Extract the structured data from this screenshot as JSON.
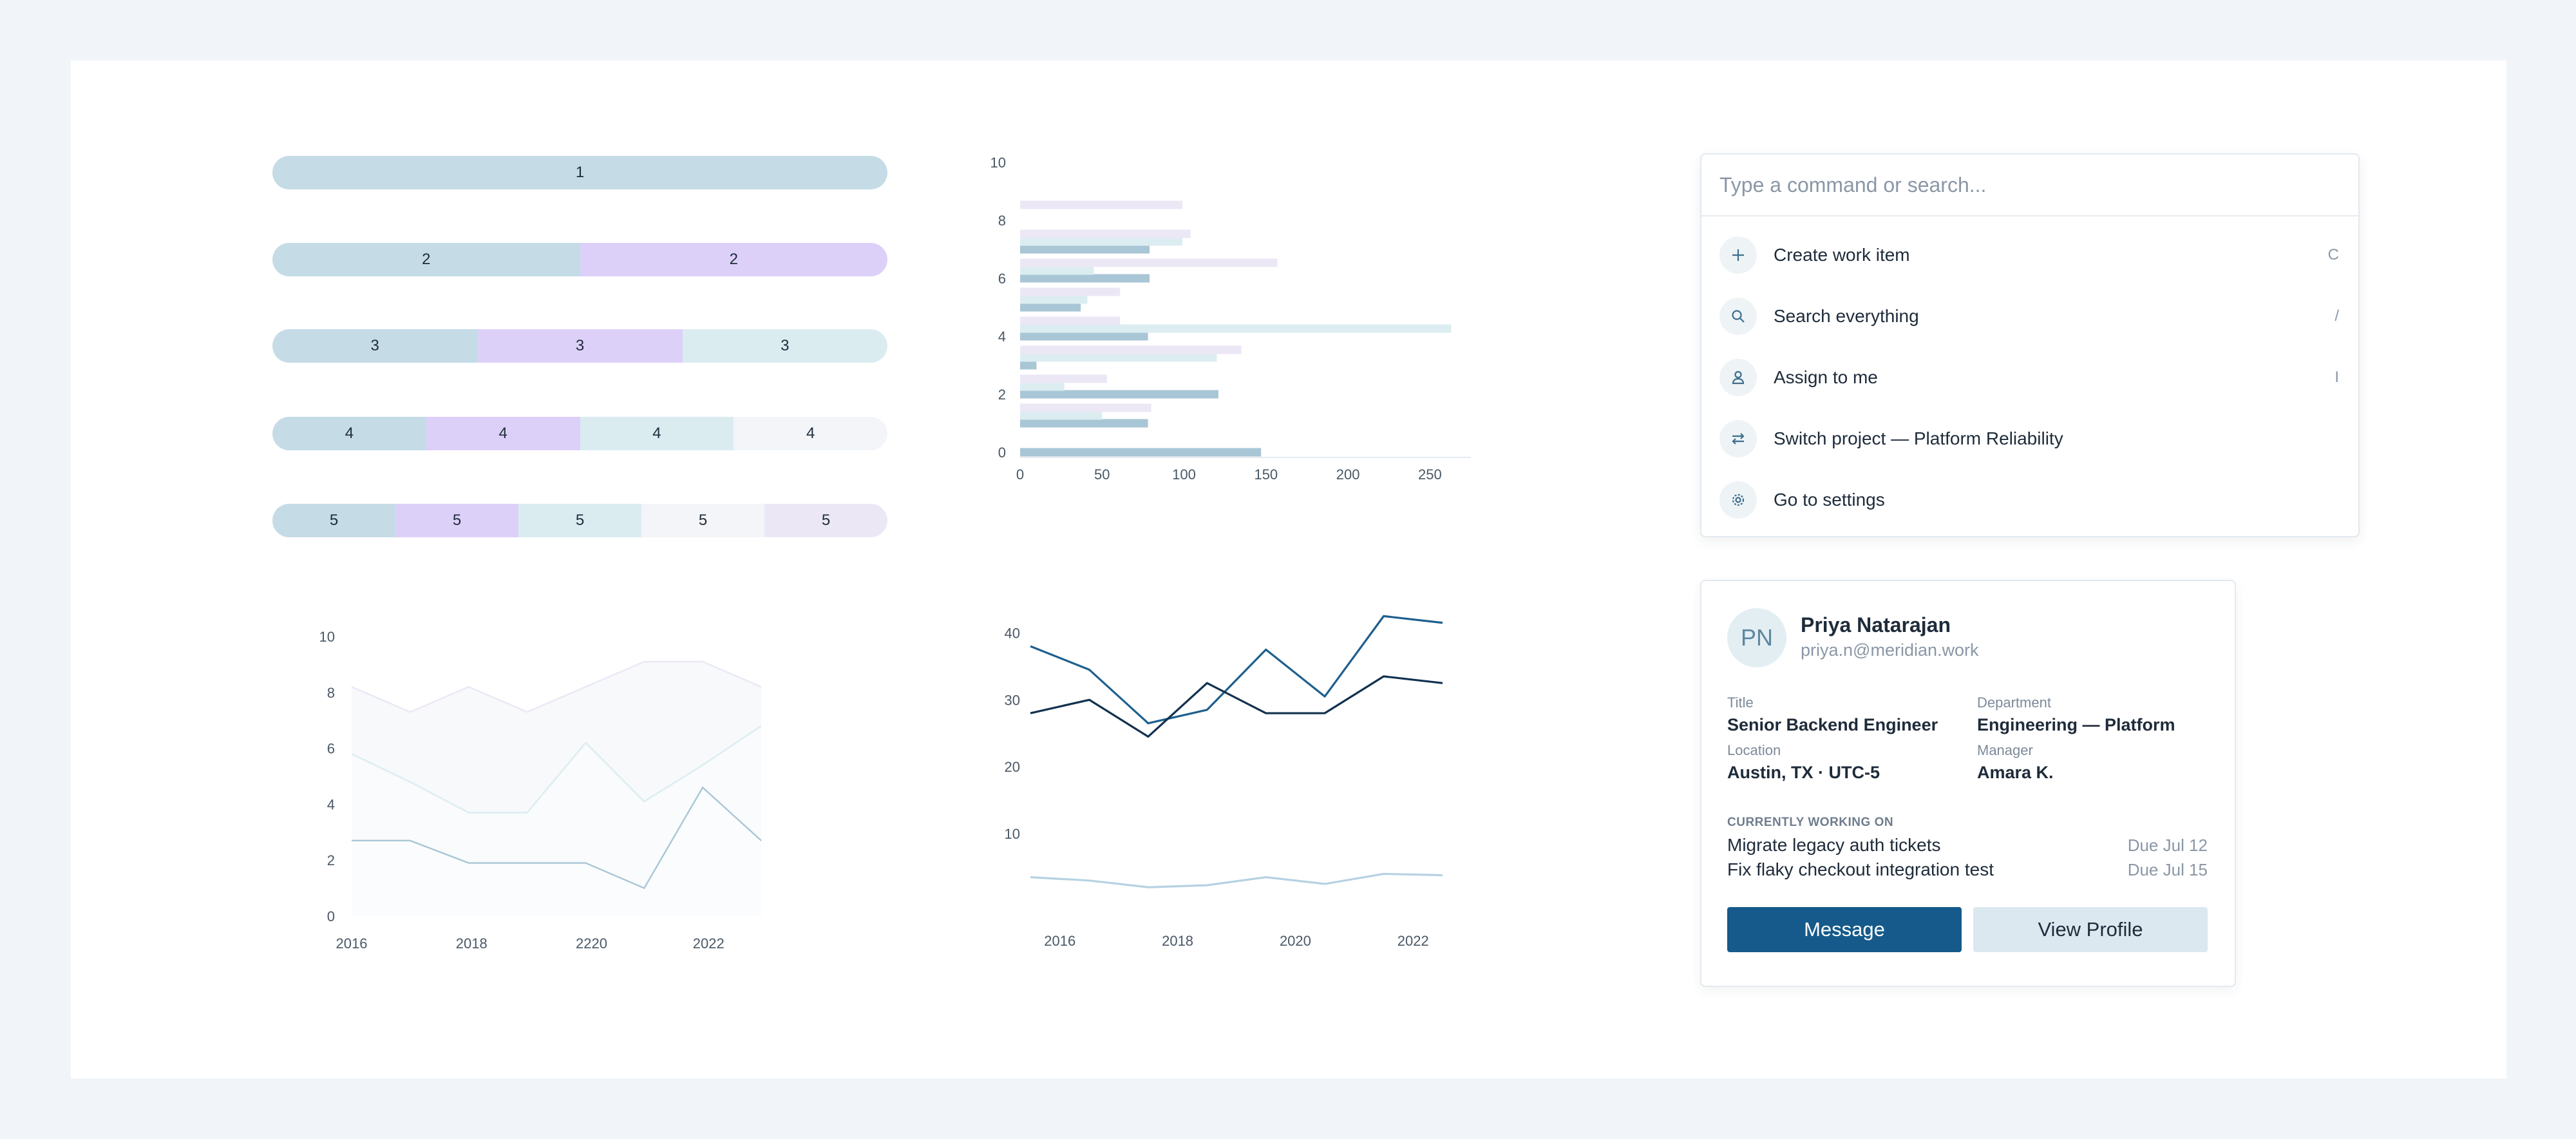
{
  "segment_bars": [
    [
      "1"
    ],
    [
      "2",
      "2"
    ],
    [
      "3",
      "3",
      "3"
    ],
    [
      "4",
      "4",
      "4",
      "4"
    ],
    [
      "5",
      "5",
      "5",
      "5",
      "5"
    ]
  ],
  "segment_colors": [
    "#c5dce7",
    "#ddd0f8",
    "#dbecf1",
    "#f3f5f8",
    "#ece7f5"
  ],
  "chart_data": [
    {
      "type": "bar",
      "orientation": "horizontal",
      "y_ticks": [
        "0",
        "2",
        "4",
        "6",
        "8",
        "10"
      ],
      "x_ticks": [
        "0",
        "50",
        "100",
        "150",
        "200",
        "250"
      ],
      "xlim": [
        0,
        275
      ],
      "ylim": [
        0,
        10
      ],
      "groups": [
        {
          "y": 0,
          "values": [
            147,
            0,
            0
          ]
        },
        {
          "y": 1,
          "values": [
            78,
            50,
            80
          ]
        },
        {
          "y": 2,
          "values": [
            121,
            27,
            53
          ]
        },
        {
          "y": 3,
          "values": [
            10,
            120,
            135
          ]
        },
        {
          "y": 4,
          "values": [
            78,
            263,
            61
          ]
        },
        {
          "y": 5,
          "values": [
            37,
            41,
            61
          ]
        },
        {
          "y": 6,
          "values": [
            79,
            45,
            157
          ]
        },
        {
          "y": 7,
          "values": [
            79,
            99,
            104
          ]
        },
        {
          "y": 8,
          "values": [
            0,
            0,
            99
          ]
        }
      ],
      "colors": [
        "#a9c6d6",
        "#dcedf1",
        "#ece7f5"
      ]
    },
    {
      "type": "area",
      "x_ticks": [
        "2016",
        "2018",
        "2220",
        "2022"
      ],
      "y_ticks": [
        "0",
        "2",
        "4",
        "6",
        "8",
        "10"
      ],
      "ylim": [
        0,
        10
      ],
      "x": [
        0,
        1,
        2,
        3,
        4,
        5,
        6,
        7
      ],
      "series": [
        {
          "values": [
            2.7,
            2.7,
            1.9,
            1.9,
            1.9,
            1.0,
            4.6,
            2.7
          ],
          "color": "#a9c6d6"
        },
        {
          "values": [
            5.8,
            4.8,
            3.7,
            3.7,
            6.2,
            4.1,
            5.4,
            6.8
          ],
          "color": "#dcedf1"
        },
        {
          "values": [
            8.2,
            7.3,
            8.2,
            7.3,
            8.2,
            9.1,
            9.1,
            8.2
          ],
          "color": "#ece7f5"
        }
      ]
    },
    {
      "type": "line",
      "x_ticks": [
        "2016",
        "2018",
        "2020",
        "2022"
      ],
      "y_ticks": [
        "10",
        "20",
        "30",
        "40"
      ],
      "ylim": [
        0,
        46
      ],
      "x": [
        2015.5,
        2016.5,
        2017.5,
        2018.5,
        2019.5,
        2020.5,
        2021.5,
        2022.5
      ],
      "series": [
        {
          "values": [
            38,
            34.5,
            26.5,
            28.5,
            37.5,
            30.5,
            42.5,
            41.5
          ],
          "color": "#1d5f8e"
        },
        {
          "values": [
            28,
            30,
            24.5,
            32.5,
            28,
            28,
            33.5,
            32.5
          ],
          "color": "#12314f"
        },
        {
          "values": [
            3.5,
            3,
            2,
            2.3,
            3.5,
            2.5,
            4,
            3.8
          ],
          "color": "#b6d2e3"
        }
      ]
    }
  ],
  "palette": {
    "placeholder": "Type a command or search...",
    "commands": [
      {
        "label": "Create work item",
        "shortcut": "C",
        "icon": "plus-icon"
      },
      {
        "label": "Search everything",
        "shortcut": "/",
        "icon": "search-icon"
      },
      {
        "label": "Assign to me",
        "shortcut": "I",
        "icon": "user-icon"
      },
      {
        "label": "Switch project — Platform Reliability",
        "shortcut": "",
        "icon": "swap-icon"
      },
      {
        "label": "Go to settings",
        "shortcut": "",
        "icon": "gear-icon"
      }
    ]
  },
  "profile": {
    "initials": "PN",
    "name": "Priya Natarajan",
    "email": "priya.n@meridian.work",
    "fields": {
      "title_label": "Title",
      "title": "Senior Backend Engineer",
      "department_label": "Department",
      "department": "Engineering — Platform",
      "location_label": "Location",
      "location": "Austin, TX · UTC-5",
      "manager_label": "Manager",
      "manager": "Amara K."
    },
    "working_on_label": "CURRENTLY WORKING ON",
    "tasks": [
      {
        "name": "Migrate legacy auth tickets",
        "due": "Due Jul 12"
      },
      {
        "name": "Fix flaky checkout integration test",
        "due": "Due Jul 15"
      }
    ],
    "message_label": "Message",
    "view_profile_label": "View Profile"
  }
}
